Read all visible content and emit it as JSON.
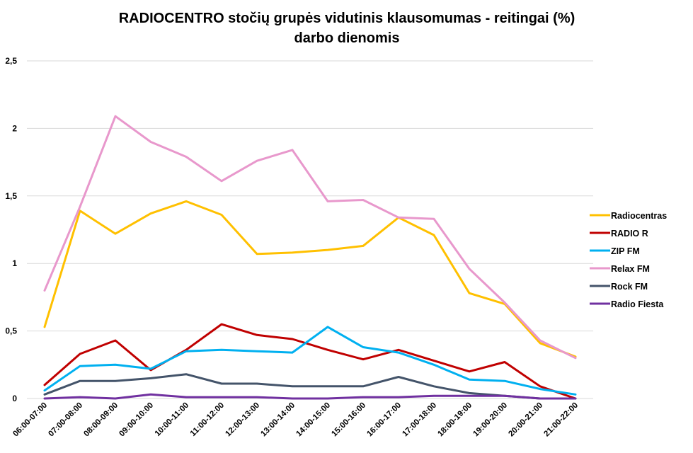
{
  "chart_data": {
    "type": "line",
    "title": "RADIOCENTRO stočių grupės vidutinis klausomumas - reitingai (%) darbo dienomis",
    "title_lines": [
      "RADIOCENTRO stočių grupės vidutinis klausomumas - reitingai (%)",
      "darbo dienomis"
    ],
    "xlabel": "",
    "ylabel": "",
    "ylim": [
      0,
      2.5
    ],
    "yticks": [
      0,
      0.5,
      1,
      1.5,
      2,
      2.5
    ],
    "ytick_labels": [
      "0",
      "0,5",
      "1",
      "1,5",
      "2",
      "2,5"
    ],
    "grid": true,
    "legend_position": "right",
    "categories": [
      "06:00-07:00",
      "07:00-08:00",
      "08:00-09:00",
      "09:00-10:00",
      "10:00-11:00",
      "11:00-12:00",
      "12:00-13:00",
      "13:00-14:00",
      "14:00-15:00",
      "15:00-16:00",
      "16:00-17:00",
      "17:00-18:00",
      "18:00-19:00",
      "19:00-20:00",
      "20:00-21:00",
      "21:00-22:00"
    ],
    "series": [
      {
        "name": "Radiocentras",
        "color": "#FFC000",
        "values": [
          0.53,
          1.39,
          1.22,
          1.37,
          1.46,
          1.36,
          1.07,
          1.08,
          1.1,
          1.13,
          1.34,
          1.21,
          0.78,
          0.7,
          0.41,
          0.31
        ]
      },
      {
        "name": "RADIO R",
        "color": "#C00000",
        "values": [
          0.1,
          0.33,
          0.43,
          0.21,
          0.36,
          0.55,
          0.47,
          0.44,
          0.36,
          0.29,
          0.36,
          0.28,
          0.2,
          0.27,
          0.09,
          0.0
        ]
      },
      {
        "name": "ZIP FM",
        "color": "#00B0F0",
        "values": [
          0.06,
          0.24,
          0.25,
          0.22,
          0.35,
          0.36,
          0.35,
          0.34,
          0.53,
          0.38,
          0.34,
          0.25,
          0.14,
          0.13,
          0.07,
          0.03
        ]
      },
      {
        "name": "Relax FM",
        "color": "#E898CC",
        "values": [
          0.8,
          1.42,
          2.09,
          1.9,
          1.79,
          1.61,
          1.76,
          1.84,
          1.46,
          1.47,
          1.34,
          1.33,
          0.96,
          0.71,
          0.43,
          0.3
        ]
      },
      {
        "name": "Rock FM",
        "color": "#44546A",
        "values": [
          0.03,
          0.13,
          0.13,
          0.15,
          0.18,
          0.11,
          0.11,
          0.09,
          0.09,
          0.09,
          0.16,
          0.09,
          0.04,
          0.02,
          0.0,
          0.0
        ]
      },
      {
        "name": "Radio Fiesta",
        "color": "#7030A0",
        "values": [
          0.0,
          0.01,
          0.0,
          0.03,
          0.01,
          0.01,
          0.01,
          0.0,
          0.0,
          0.01,
          0.01,
          0.02,
          0.02,
          0.02,
          0.0,
          0.0
        ]
      }
    ]
  }
}
